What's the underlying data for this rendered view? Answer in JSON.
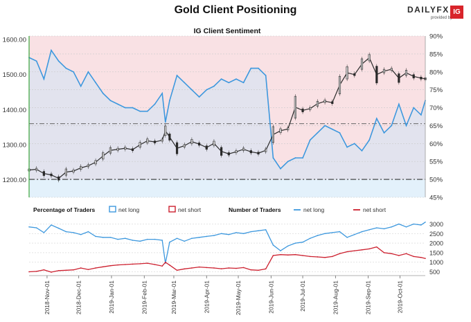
{
  "title": "Gold Client Positioning",
  "brand": {
    "wordmark": "DAILYFX",
    "provided_by": "provided by",
    "ig": "IG",
    "ig_color": "#d8242a"
  },
  "colors": {
    "net_long": "#3d98de",
    "net_short": "#cc1f2e",
    "price": "#2a2a2a",
    "long_fill": "#e3f1fb",
    "short_fill": "#f9e1e4",
    "axis_left": "#3aa53a"
  },
  "chart_data": [
    {
      "type": "line",
      "title": "IG Client Sentiment",
      "xlabel": "",
      "ylabel": "",
      "y_left": {
        "ticks": [
          "1200.00",
          "1300.00",
          "1400.00",
          "1500.00",
          "1600.00"
        ],
        "ylim": [
          1150,
          1610
        ]
      },
      "y_right": {
        "ticks": [
          "45%",
          "50%",
          "55%",
          "60%",
          "65%",
          "70%",
          "75%",
          "80%",
          "85%",
          "90%"
        ],
        "ylim": [
          45,
          90
        ]
      },
      "reference_lines": {
        "price": 1360,
        "percent": 50
      },
      "x_range": [
        "2018-10-15",
        "2019-10-25"
      ],
      "series": [
        {
          "name": "Gold price",
          "points": [
            [
              "2018-10-15",
              1228
            ],
            [
              "2018-10-22",
              1230
            ],
            [
              "2018-10-29",
              1218
            ],
            [
              "2018-11-05",
              1214
            ],
            [
              "2018-11-12",
              1204
            ],
            [
              "2018-11-19",
              1222
            ],
            [
              "2018-11-26",
              1225
            ],
            [
              "2018-12-03",
              1234
            ],
            [
              "2018-12-10",
              1240
            ],
            [
              "2018-12-17",
              1250
            ],
            [
              "2018-12-24",
              1268
            ],
            [
              "2018-12-31",
              1284
            ],
            [
              "2019-01-07",
              1287
            ],
            [
              "2019-01-14",
              1290
            ],
            [
              "2019-01-21",
              1286
            ],
            [
              "2019-01-28",
              1300
            ],
            [
              "2019-02-04",
              1311
            ],
            [
              "2019-02-11",
              1308
            ],
            [
              "2019-02-18",
              1313
            ],
            [
              "2019-02-21",
              1340
            ],
            [
              "2019-02-25",
              1322
            ],
            [
              "2019-03-04",
              1290
            ],
            [
              "2019-03-11",
              1297
            ],
            [
              "2019-03-18",
              1309
            ],
            [
              "2019-03-25",
              1302
            ],
            [
              "2019-04-01",
              1292
            ],
            [
              "2019-04-08",
              1304
            ],
            [
              "2019-04-15",
              1281
            ],
            [
              "2019-04-22",
              1274
            ],
            [
              "2019-04-29",
              1280
            ],
            [
              "2019-05-06",
              1287
            ],
            [
              "2019-05-13",
              1280
            ],
            [
              "2019-05-20",
              1276
            ],
            [
              "2019-05-27",
              1284
            ],
            [
              "2019-06-03",
              1329
            ],
            [
              "2019-06-10",
              1340
            ],
            [
              "2019-06-17",
              1345
            ],
            [
              "2019-06-24",
              1407
            ],
            [
              "2019-07-01",
              1398
            ],
            [
              "2019-07-08",
              1403
            ],
            [
              "2019-07-15",
              1417
            ],
            [
              "2019-07-22",
              1424
            ],
            [
              "2019-07-29",
              1420
            ],
            [
              "2019-08-05",
              1470
            ],
            [
              "2019-08-12",
              1505
            ],
            [
              "2019-08-19",
              1500
            ],
            [
              "2019-08-26",
              1530
            ],
            [
              "2019-09-02",
              1548
            ],
            [
              "2019-09-09",
              1500
            ],
            [
              "2019-09-16",
              1510
            ],
            [
              "2019-09-23",
              1515
            ],
            [
              "2019-09-30",
              1490
            ],
            [
              "2019-10-07",
              1505
            ],
            [
              "2019-10-14",
              1495
            ],
            [
              "2019-10-21",
              1490
            ],
            [
              "2019-10-25",
              1488
            ]
          ]
        },
        {
          "name": "net long",
          "points": [
            [
              "2018-10-15",
              84
            ],
            [
              "2018-10-22",
              83
            ],
            [
              "2018-10-29",
              78
            ],
            [
              "2018-11-05",
              86
            ],
            [
              "2018-11-12",
              83
            ],
            [
              "2018-11-19",
              81
            ],
            [
              "2018-11-26",
              80
            ],
            [
              "2018-12-03",
              76
            ],
            [
              "2018-12-10",
              80
            ],
            [
              "2018-12-17",
              77
            ],
            [
              "2018-12-24",
              74
            ],
            [
              "2018-12-31",
              72
            ],
            [
              "2019-01-07",
              71
            ],
            [
              "2019-01-14",
              70
            ],
            [
              "2019-01-21",
              70
            ],
            [
              "2019-01-28",
              69
            ],
            [
              "2019-02-04",
              69
            ],
            [
              "2019-02-11",
              71
            ],
            [
              "2019-02-18",
              74
            ],
            [
              "2019-02-21",
              66
            ],
            [
              "2019-02-25",
              72
            ],
            [
              "2019-03-04",
              79
            ],
            [
              "2019-03-11",
              77
            ],
            [
              "2019-03-18",
              75
            ],
            [
              "2019-03-25",
              73
            ],
            [
              "2019-04-01",
              75
            ],
            [
              "2019-04-08",
              76
            ],
            [
              "2019-04-15",
              78
            ],
            [
              "2019-04-22",
              77
            ],
            [
              "2019-04-29",
              78
            ],
            [
              "2019-05-06",
              77
            ],
            [
              "2019-05-13",
              81
            ],
            [
              "2019-05-20",
              81
            ],
            [
              "2019-05-27",
              79
            ],
            [
              "2019-06-03",
              56
            ],
            [
              "2019-06-10",
              53
            ],
            [
              "2019-06-17",
              55
            ],
            [
              "2019-06-24",
              56
            ],
            [
              "2019-07-01",
              56
            ],
            [
              "2019-07-08",
              61
            ],
            [
              "2019-07-15",
              63
            ],
            [
              "2019-07-22",
              65
            ],
            [
              "2019-07-29",
              64
            ],
            [
              "2019-08-05",
              63
            ],
            [
              "2019-08-12",
              59
            ],
            [
              "2019-08-19",
              60
            ],
            [
              "2019-08-26",
              58
            ],
            [
              "2019-09-02",
              61
            ],
            [
              "2019-09-09",
              67
            ],
            [
              "2019-09-16",
              63
            ],
            [
              "2019-09-23",
              65
            ],
            [
              "2019-09-30",
              71
            ],
            [
              "2019-10-07",
              65
            ],
            [
              "2019-10-14",
              70
            ],
            [
              "2019-10-21",
              68
            ],
            [
              "2019-10-25",
              72
            ]
          ]
        }
      ]
    },
    {
      "type": "line",
      "legend": {
        "percentage_title": "Percentage of Traders",
        "percentage_items": [
          "net long",
          "net short"
        ],
        "number_title": "Number of Traders",
        "number_items": [
          "net long",
          "net short"
        ]
      },
      "y_right": {
        "ticks": [
          "500",
          "1000",
          "1500",
          "2000",
          "2500",
          "3000"
        ],
        "ylim": [
          300,
          3200
        ]
      },
      "x_ticks": [
        "2018-Nov-01",
        "2018-Dec-01",
        "2019-Jan-01",
        "2019-Feb-01",
        "2019-Mar-01",
        "2019-Apr-01",
        "2019-May-01",
        "2019-Jun-01",
        "2019-Jul-01",
        "2019-Aug-01",
        "2019-Sep-01",
        "2019-Oct-01"
      ],
      "series": [
        {
          "name": "net long",
          "points": [
            [
              "2018-10-15",
              2850
            ],
            [
              "2018-10-22",
              2800
            ],
            [
              "2018-10-29",
              2550
            ],
            [
              "2018-11-05",
              2950
            ],
            [
              "2018-11-12",
              2780
            ],
            [
              "2018-11-19",
              2600
            ],
            [
              "2018-11-26",
              2550
            ],
            [
              "2018-12-03",
              2450
            ],
            [
              "2018-12-10",
              2600
            ],
            [
              "2018-12-17",
              2350
            ],
            [
              "2018-12-24",
              2300
            ],
            [
              "2018-12-31",
              2300
            ],
            [
              "2019-01-07",
              2200
            ],
            [
              "2019-01-14",
              2250
            ],
            [
              "2019-01-21",
              2150
            ],
            [
              "2019-01-28",
              2100
            ],
            [
              "2019-02-04",
              2200
            ],
            [
              "2019-02-11",
              2200
            ],
            [
              "2019-02-18",
              2150
            ],
            [
              "2019-02-21",
              950
            ],
            [
              "2019-02-25",
              2050
            ],
            [
              "2019-03-04",
              2250
            ],
            [
              "2019-03-11",
              2100
            ],
            [
              "2019-03-18",
              2250
            ],
            [
              "2019-03-25",
              2300
            ],
            [
              "2019-04-01",
              2350
            ],
            [
              "2019-04-08",
              2400
            ],
            [
              "2019-04-15",
              2500
            ],
            [
              "2019-04-22",
              2450
            ],
            [
              "2019-04-29",
              2550
            ],
            [
              "2019-05-06",
              2500
            ],
            [
              "2019-05-13",
              2600
            ],
            [
              "2019-05-20",
              2650
            ],
            [
              "2019-05-27",
              2700
            ],
            [
              "2019-06-03",
              1900
            ],
            [
              "2019-06-10",
              1600
            ],
            [
              "2019-06-17",
              1850
            ],
            [
              "2019-06-24",
              2000
            ],
            [
              "2019-07-01",
              2050
            ],
            [
              "2019-07-08",
              2250
            ],
            [
              "2019-07-15",
              2400
            ],
            [
              "2019-07-22",
              2500
            ],
            [
              "2019-07-29",
              2550
            ],
            [
              "2019-08-05",
              2600
            ],
            [
              "2019-08-12",
              2300
            ],
            [
              "2019-08-19",
              2450
            ],
            [
              "2019-08-26",
              2600
            ],
            [
              "2019-09-02",
              2700
            ],
            [
              "2019-09-09",
              2800
            ],
            [
              "2019-09-16",
              2750
            ],
            [
              "2019-09-23",
              2850
            ],
            [
              "2019-09-30",
              3000
            ],
            [
              "2019-10-07",
              2850
            ],
            [
              "2019-10-14",
              3000
            ],
            [
              "2019-10-21",
              2950
            ],
            [
              "2019-10-25",
              3100
            ]
          ]
        },
        {
          "name": "net short",
          "points": [
            [
              "2018-10-15",
              500
            ],
            [
              "2018-10-22",
              520
            ],
            [
              "2018-10-29",
              600
            ],
            [
              "2018-11-05",
              480
            ],
            [
              "2018-11-12",
              560
            ],
            [
              "2018-11-19",
              580
            ],
            [
              "2018-11-26",
              600
            ],
            [
              "2018-12-03",
              700
            ],
            [
              "2018-12-10",
              620
            ],
            [
              "2018-12-17",
              700
            ],
            [
              "2018-12-24",
              760
            ],
            [
              "2018-12-31",
              820
            ],
            [
              "2019-01-07",
              860
            ],
            [
              "2019-01-14",
              880
            ],
            [
              "2019-01-21",
              900
            ],
            [
              "2019-01-28",
              920
            ],
            [
              "2019-02-04",
              950
            ],
            [
              "2019-02-11",
              880
            ],
            [
              "2019-02-18",
              800
            ],
            [
              "2019-02-21",
              1000
            ],
            [
              "2019-02-25",
              850
            ],
            [
              "2019-03-04",
              580
            ],
            [
              "2019-03-11",
              650
            ],
            [
              "2019-03-18",
              700
            ],
            [
              "2019-03-25",
              750
            ],
            [
              "2019-04-01",
              720
            ],
            [
              "2019-04-08",
              700
            ],
            [
              "2019-04-15",
              660
            ],
            [
              "2019-04-22",
              700
            ],
            [
              "2019-04-29",
              680
            ],
            [
              "2019-05-06",
              720
            ],
            [
              "2019-05-13",
              600
            ],
            [
              "2019-05-20",
              580
            ],
            [
              "2019-05-27",
              650
            ],
            [
              "2019-06-03",
              1350
            ],
            [
              "2019-06-10",
              1400
            ],
            [
              "2019-06-17",
              1380
            ],
            [
              "2019-06-24",
              1400
            ],
            [
              "2019-07-01",
              1350
            ],
            [
              "2019-07-08",
              1300
            ],
            [
              "2019-07-15",
              1280
            ],
            [
              "2019-07-22",
              1250
            ],
            [
              "2019-07-29",
              1300
            ],
            [
              "2019-08-05",
              1450
            ],
            [
              "2019-08-12",
              1550
            ],
            [
              "2019-08-19",
              1600
            ],
            [
              "2019-08-26",
              1650
            ],
            [
              "2019-09-02",
              1700
            ],
            [
              "2019-09-09",
              1800
            ],
            [
              "2019-09-16",
              1500
            ],
            [
              "2019-09-23",
              1450
            ],
            [
              "2019-09-30",
              1350
            ],
            [
              "2019-10-07",
              1450
            ],
            [
              "2019-10-14",
              1300
            ],
            [
              "2019-10-21",
              1250
            ],
            [
              "2019-10-25",
              1200
            ]
          ]
        }
      ]
    }
  ]
}
